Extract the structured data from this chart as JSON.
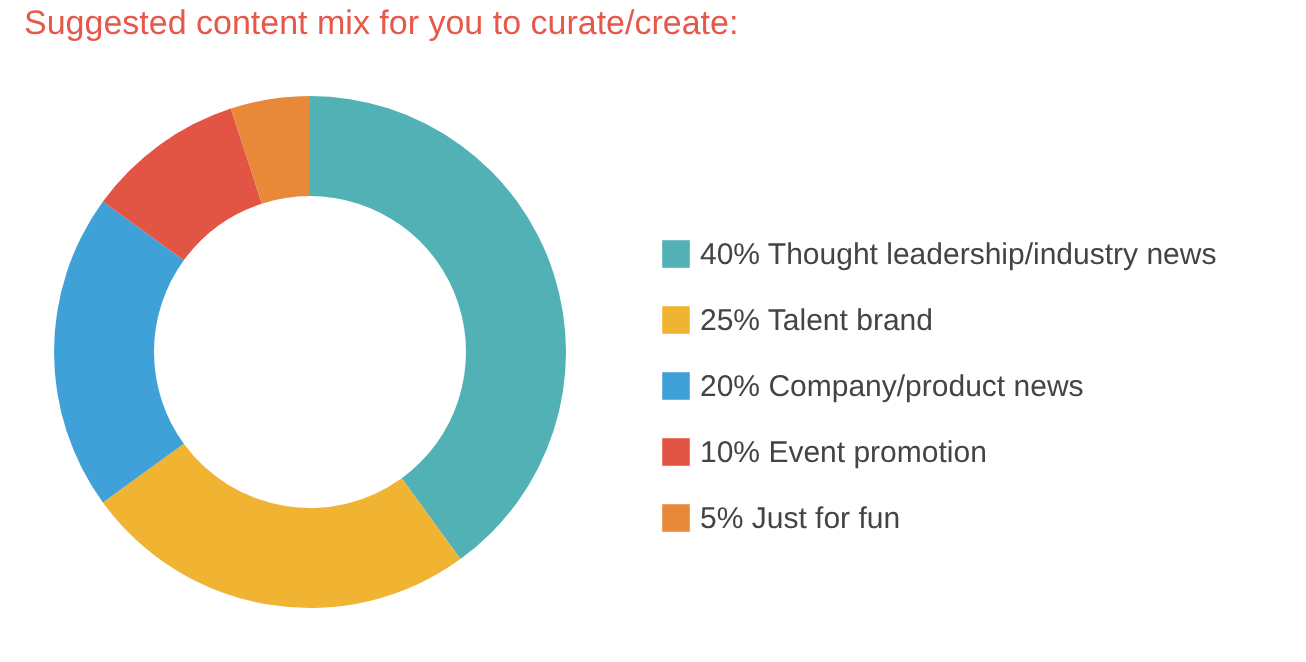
{
  "chart_data": {
    "type": "donut",
    "title": "Suggested content mix for you to curate/create:",
    "categories": [
      "Thought leadership/industry news",
      "Talent brand",
      "Company/product news",
      "Event promotion",
      "Just for fun"
    ],
    "values": [
      40,
      25,
      20,
      10,
      5
    ],
    "value_labels": [
      "40%",
      "25%",
      "20%",
      "10%",
      "5%"
    ],
    "colors": [
      "#52b1b4",
      "#f0b432",
      "#40a1d9",
      "#e25444",
      "#e8893a"
    ],
    "legend": "right"
  }
}
